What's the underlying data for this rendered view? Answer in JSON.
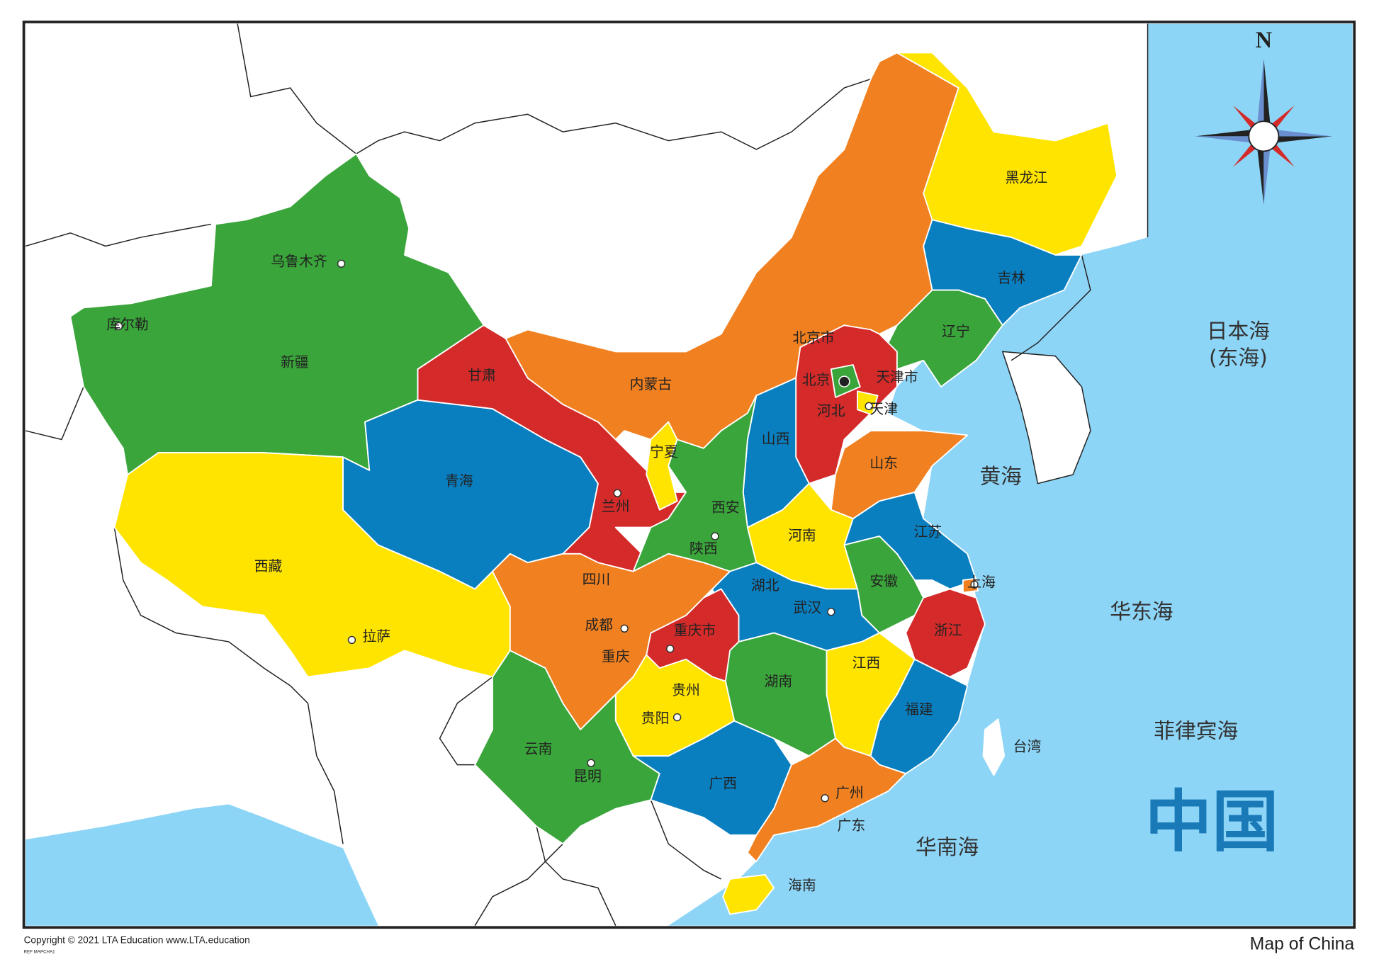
{
  "map": {
    "title": "中国",
    "caption": "Map of China",
    "compass": "N",
    "copyright": "Copyright © 2021 LTA Education  www.LTA.education",
    "ref": "REF MAPCHA1",
    "seas": [
      "日本海",
      "(东海)",
      "黄海",
      "华东海",
      "菲律宾海",
      "华南海"
    ],
    "regions": [
      {
        "name": "新疆",
        "color": "#3aa53a"
      },
      {
        "name": "西藏",
        "color": "#ffe400"
      },
      {
        "name": "青海",
        "color": "#0a7fc0"
      },
      {
        "name": "甘肃",
        "color": "#d42a2a"
      },
      {
        "name": "内蒙古",
        "color": "#f08020"
      },
      {
        "name": "黑龙江",
        "color": "#ffe400"
      },
      {
        "name": "吉林",
        "color": "#0a7fc0"
      },
      {
        "name": "辽宁",
        "color": "#3aa53a"
      },
      {
        "name": "河北",
        "color": "#d42a2a"
      },
      {
        "name": "北京市",
        "color": "#3aa53a"
      },
      {
        "name": "天津市",
        "color": "#ffe400"
      },
      {
        "name": "山西",
        "color": "#0a7fc0"
      },
      {
        "name": "山东",
        "color": "#f08020"
      },
      {
        "name": "宁夏",
        "color": "#ffe400"
      },
      {
        "name": "陕西",
        "color": "#3aa53a"
      },
      {
        "name": "河南",
        "color": "#ffe400"
      },
      {
        "name": "江苏",
        "color": "#0a7fc0"
      },
      {
        "name": "安徽",
        "color": "#3aa53a"
      },
      {
        "name": "浙江",
        "color": "#d42a2a"
      },
      {
        "name": "湖北",
        "color": "#0a7fc0"
      },
      {
        "name": "重庆市",
        "color": "#d42a2a"
      },
      {
        "name": "四川",
        "color": "#f08020"
      },
      {
        "name": "贵州",
        "color": "#ffe400"
      },
      {
        "name": "云南",
        "color": "#3aa53a"
      },
      {
        "name": "广西",
        "color": "#0a7fc0"
      },
      {
        "name": "湖南",
        "color": "#3aa53a"
      },
      {
        "name": "江西",
        "color": "#ffe400"
      },
      {
        "name": "福建",
        "color": "#0a7fc0"
      },
      {
        "name": "广东",
        "color": "#f08020"
      },
      {
        "name": "海南",
        "color": "#ffe400"
      },
      {
        "name": "台湾",
        "color": "#ffffff"
      }
    ],
    "cities": [
      "乌鲁木齐",
      "库尔勒",
      "兰州",
      "西安",
      "北京",
      "天津",
      "上海",
      "武汉",
      "成都",
      "重庆",
      "贵阳",
      "昆明",
      "广州",
      "拉萨"
    ]
  }
}
